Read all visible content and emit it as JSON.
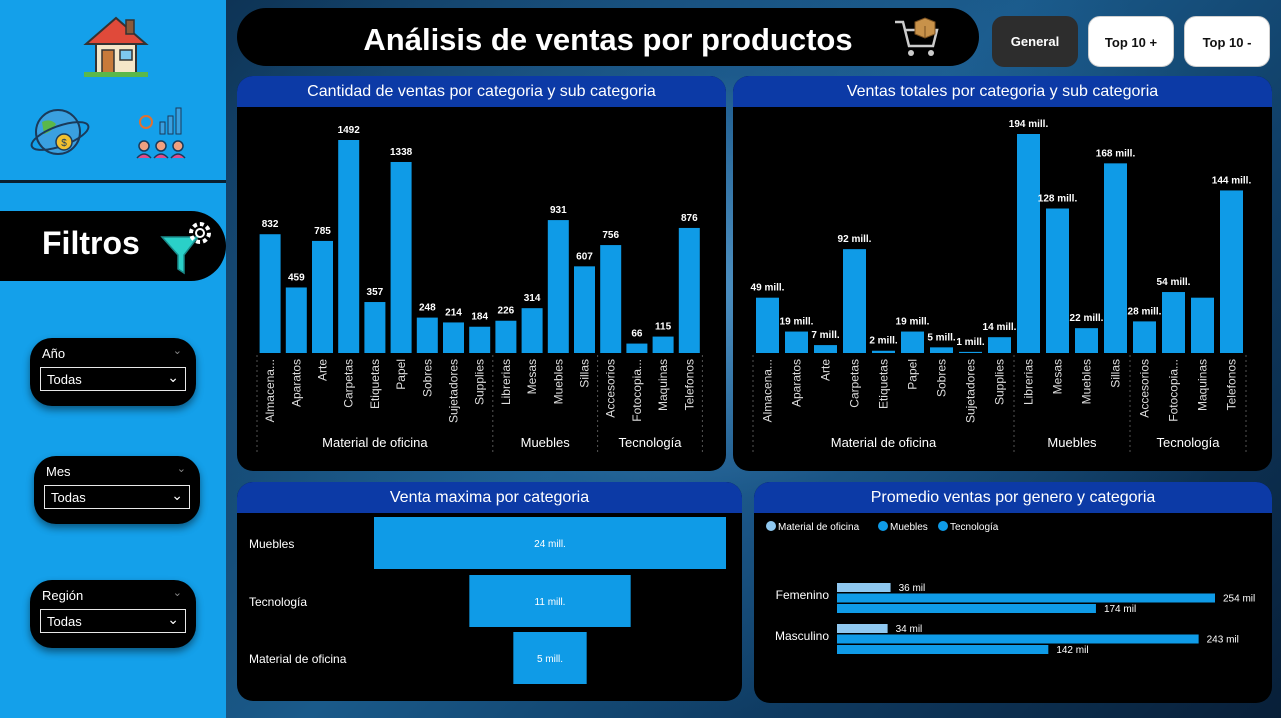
{
  "title": "Análisis de ventas por productos",
  "nav": [
    {
      "label": "General",
      "active": true
    },
    {
      "label": "Top 10 +",
      "active": false
    },
    {
      "label": "Top 10 -",
      "active": false
    }
  ],
  "sidebar": {
    "filters_label": "Filtros",
    "slicers": [
      {
        "label": "Año",
        "value": "Todas"
      },
      {
        "label": "Mes",
        "value": "Todas"
      },
      {
        "label": "Región",
        "value": "Todas"
      }
    ]
  },
  "colors": {
    "bar": "#0f9be7",
    "header": "#0c3aa6",
    "sidebar": "#14a0ea",
    "light_bar": "#8fc8f0"
  },
  "chart_data": [
    {
      "type": "bar",
      "title": "Cantidad de ventas por categoria y sub categoria",
      "categories": [
        "Almacena...",
        "Aparatos",
        "Arte",
        "Carpetas",
        "Etiquetas",
        "Papel",
        "Sobres",
        "Sujetadores",
        "Supplies",
        "Librerias",
        "Mesas",
        "Muebles",
        "Sillas",
        "Accesorios",
        "Fotocopia...",
        "Maquinas",
        "Telefonos"
      ],
      "groups": [
        {
          "name": "Material de oficina",
          "count": 9
        },
        {
          "name": "Muebles",
          "count": 4
        },
        {
          "name": "Tecnología",
          "count": 4
        }
      ],
      "values": [
        832,
        459,
        785,
        1492,
        357,
        1338,
        248,
        214,
        184,
        226,
        314,
        931,
        607,
        756,
        66,
        115,
        876
      ],
      "labels": [
        "832",
        "459",
        "785",
        "1492",
        "357",
        "1338",
        "248",
        "214",
        "184",
        "226",
        "314",
        "931",
        "607",
        "756",
        "66",
        "115",
        "876"
      ]
    },
    {
      "type": "bar",
      "title": "Ventas totales por categoria y sub categoria",
      "categories": [
        "Almacena...",
        "Aparatos",
        "Arte",
        "Carpetas",
        "Etiquetas",
        "Papel",
        "Sobres",
        "Sujetadores",
        "Supplies",
        "Librerias",
        "Mesas",
        "Muebles",
        "Sillas",
        "Accesorios",
        "Fotocopia...",
        "Maquinas",
        "Telefonos"
      ],
      "groups": [
        {
          "name": "Material de oficina",
          "count": 9
        },
        {
          "name": "Muebles",
          "count": 4
        },
        {
          "name": "Tecnología",
          "count": 4
        }
      ],
      "values": [
        49,
        19,
        7,
        92,
        2,
        19,
        5,
        1,
        14,
        194,
        128,
        22,
        168,
        28,
        54,
        49,
        144
      ],
      "labels": [
        "49 mill.",
        "19 mill.",
        "7 mill.",
        "92 mill.",
        "2 mill.",
        "19 mill.",
        "5 mill.",
        "1 mill.",
        "14 mill.",
        "194 mill.",
        "128 mill.",
        "22 mill.",
        "168 mill.",
        "28 mill.",
        "54 mill.",
        "",
        "144 mill."
      ]
    },
    {
      "type": "bar",
      "orientation": "funnel",
      "title": "Venta maxima por categoria",
      "categories": [
        "Muebles",
        "Tecnología",
        "Material de oficina"
      ],
      "values": [
        24,
        11,
        5
      ],
      "labels": [
        "24 mill.",
        "11 mill.",
        "5 mill."
      ]
    },
    {
      "type": "bar",
      "orientation": "horizontal",
      "title": "Promedio ventas por genero y categoria",
      "legend": [
        "Material de oficina",
        "Muebles",
        "Tecnología"
      ],
      "categories": [
        "Femenino",
        "Masculino"
      ],
      "series": [
        {
          "name": "Material de oficina",
          "values": [
            36,
            34
          ],
          "labels": [
            "36 mil",
            "34 mil"
          ]
        },
        {
          "name": "Muebles",
          "values": [
            254,
            243
          ],
          "labels": [
            "254 mil",
            "243 mil"
          ]
        },
        {
          "name": "Tecnología",
          "values": [
            174,
            142
          ],
          "labels": [
            "174 mil",
            "142 mil"
          ]
        }
      ]
    }
  ]
}
